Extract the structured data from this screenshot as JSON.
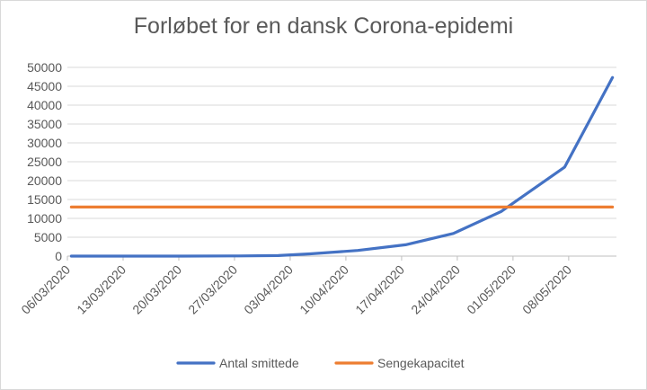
{
  "chart_data": {
    "type": "line",
    "title": "Forløbet for en dansk Corona-epidemi",
    "xlabel": "",
    "ylabel": "",
    "x_start": "06/03/2020",
    "x_end": "13/05/2020",
    "x_tick_labels": [
      "06/03/2020",
      "13/03/2020",
      "20/03/2020",
      "27/03/2020",
      "03/04/2020",
      "10/04/2020",
      "17/04/2020",
      "24/04/2020",
      "01/05/2020",
      "08/05/2020"
    ],
    "ylim": [
      0,
      50000
    ],
    "y_ticks": [
      0,
      5000,
      10000,
      15000,
      20000,
      25000,
      30000,
      35000,
      40000,
      45000,
      50000
    ],
    "grid": "horizontal",
    "legend_position": "bottom",
    "series": [
      {
        "name": "Antal smittede",
        "color": "#4472c4",
        "points": [
          {
            "x": "06/03/2020",
            "y": 0
          },
          {
            "x": "13/03/2020",
            "y": 0
          },
          {
            "x": "20/03/2020",
            "y": 0
          },
          {
            "x": "27/03/2020",
            "y": 50
          },
          {
            "x": "01/04/2020",
            "y": 150
          },
          {
            "x": "05/04/2020",
            "y": 600
          },
          {
            "x": "11/04/2020",
            "y": 1500
          },
          {
            "x": "17/04/2020",
            "y": 3000
          },
          {
            "x": "23/04/2020",
            "y": 6000
          },
          {
            "x": "29/04/2020",
            "y": 11800
          },
          {
            "x": "07/05/2020",
            "y": 23600
          },
          {
            "x": "13/05/2020",
            "y": 47300
          }
        ]
      },
      {
        "name": "Sengekapacitet",
        "color": "#ed7d31",
        "points": [
          {
            "x": "06/03/2020",
            "y": 13000
          },
          {
            "x": "13/05/2020",
            "y": 13000
          }
        ]
      }
    ]
  }
}
